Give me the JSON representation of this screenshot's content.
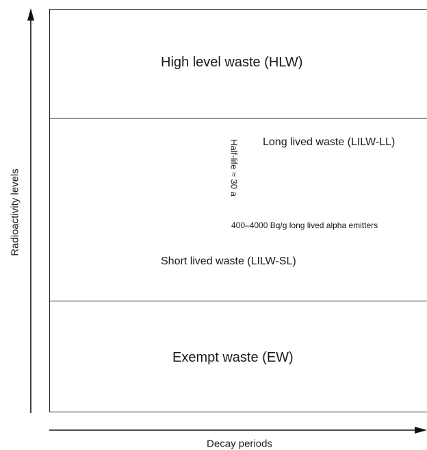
{
  "axes": {
    "y_label": "Radioactivity levels",
    "x_label": "Decay periods"
  },
  "zones": {
    "hlw": "High level waste (HLW)",
    "lilw_ll": "Long lived waste (LILW-LL)",
    "half_life": "Half-life ≈ 30 a",
    "alpha": "400–4000 Bq/g long lived alpha emitters",
    "lilw_sl": "Short lived waste (LILW-SL)",
    "ew": "Exempt waste (EW)"
  }
}
